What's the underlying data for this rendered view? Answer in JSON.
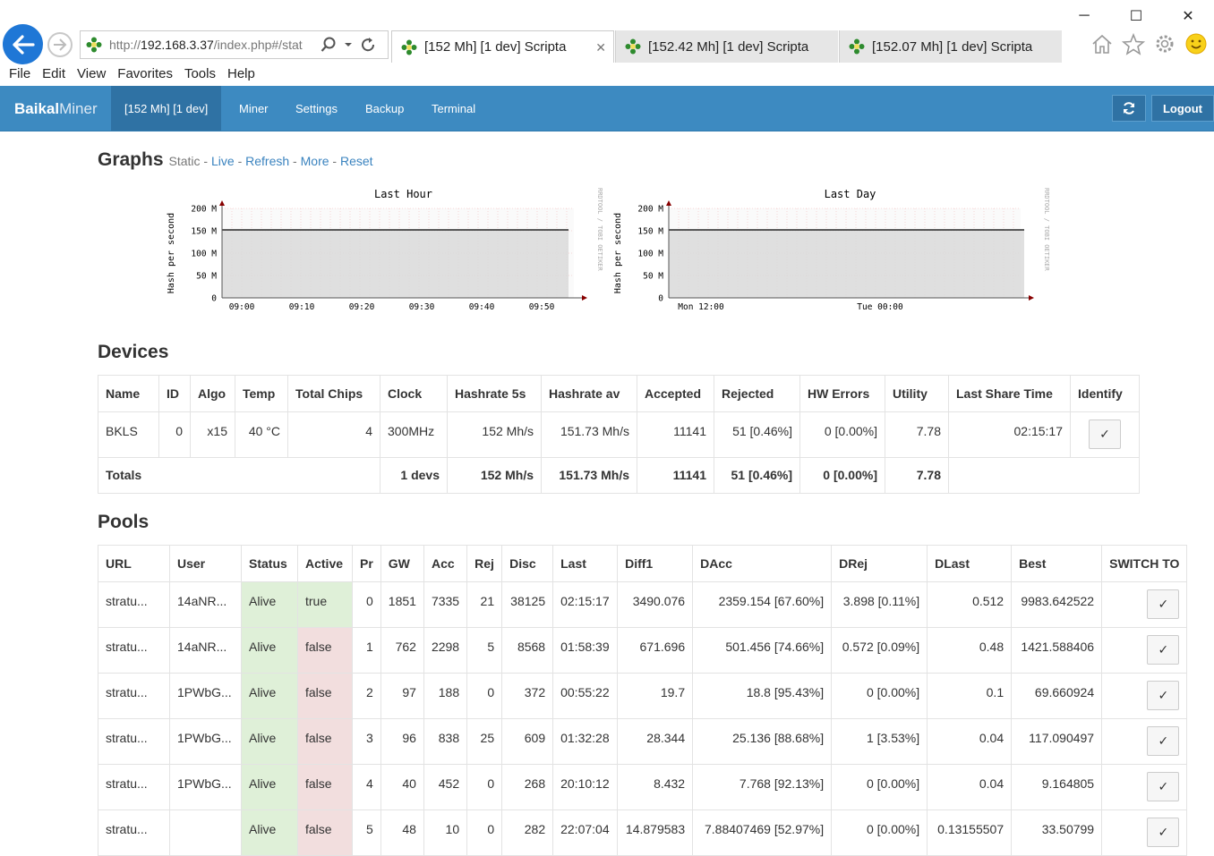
{
  "browser": {
    "url_prefix": "http://",
    "url_host": "192.168.3.37",
    "url_path": "/index.php#/stat",
    "tabs": [
      {
        "label": "[152 Mh] [1 dev] Scripta"
      },
      {
        "label": "[152.42 Mh] [1 dev] Scripta"
      },
      {
        "label": "[152.07 Mh] [1 dev] Scripta"
      }
    ],
    "menu": [
      "File",
      "Edit",
      "View",
      "Favorites",
      "Tools",
      "Help"
    ]
  },
  "nav": {
    "brand_bold": "Baikal",
    "brand_rest": "Miner",
    "items": [
      "[152 Mh] [1 dev]",
      "Miner",
      "Settings",
      "Backup",
      "Terminal"
    ],
    "logout": "Logout"
  },
  "graphs": {
    "title": "Graphs",
    "static": "Static",
    "links": [
      "Live",
      "Refresh",
      "More",
      "Reset"
    ]
  },
  "chart_data": [
    {
      "type": "area",
      "title": "Last Hour",
      "ylabel": "Hash per second",
      "yticks": [
        "0",
        "50 M",
        "100 M",
        "150 M",
        "200 M"
      ],
      "xticks": [
        "09:00",
        "09:10",
        "09:20",
        "09:30",
        "09:40",
        "09:50"
      ],
      "ylim": [
        0,
        200
      ],
      "value": 152,
      "watermark": "RRDTOOL / TOBI OETIKER"
    },
    {
      "type": "area",
      "title": "Last Day",
      "ylabel": "Hash per second",
      "yticks": [
        "0",
        "50 M",
        "100 M",
        "150 M",
        "200 M"
      ],
      "xticks": [
        "Mon 12:00",
        "Tue 00:00"
      ],
      "ylim": [
        0,
        200
      ],
      "value": 152,
      "watermark": "RRDTOOL / TOBI OETIKER"
    }
  ],
  "devices": {
    "title": "Devices",
    "headers": [
      "Name",
      "ID",
      "Algo",
      "Temp",
      "Total Chips",
      "Clock",
      "Hashrate 5s",
      "Hashrate av",
      "Accepted",
      "Rejected",
      "HW Errors",
      "Utility",
      "Last Share Time",
      "Identify"
    ],
    "rows": [
      [
        "BKLS",
        "0",
        "x15",
        "40 °C",
        "4",
        "300MHz",
        "152 Mh/s",
        "151.73 Mh/s",
        "11141",
        "51 [0.46%]",
        "0 [0.00%]",
        "7.78",
        "02:15:17"
      ]
    ],
    "totals": [
      "Totals",
      "1 devs",
      "152 Mh/s",
      "151.73 Mh/s",
      "11141",
      "51 [0.46%]",
      "0 [0.00%]",
      "7.78"
    ],
    "check": "✓"
  },
  "pools": {
    "title": "Pools",
    "headers": [
      "URL",
      "User",
      "Status",
      "Active",
      "Pr",
      "GW",
      "Acc",
      "Rej",
      "Disc",
      "Last",
      "Diff1",
      "DAcc",
      "DRej",
      "DLast",
      "Best",
      "SWITCH TO"
    ],
    "rows": [
      [
        "stratu...",
        "14aNR...",
        "Alive",
        "true",
        "0",
        "1851",
        "7335",
        "21",
        "38125",
        "02:15:17",
        "3490.076",
        "2359.154 [67.60%]",
        "3.898 [0.11%]",
        "0.512",
        "9983.642522"
      ],
      [
        "stratu...",
        "14aNR...",
        "Alive",
        "false",
        "1",
        "762",
        "2298",
        "5",
        "8568",
        "01:58:39",
        "671.696",
        "501.456 [74.66%]",
        "0.572 [0.09%]",
        "0.48",
        "1421.588406"
      ],
      [
        "stratu...",
        "1PWbG...",
        "Alive",
        "false",
        "2",
        "97",
        "188",
        "0",
        "372",
        "00:55:22",
        "19.7",
        "18.8 [95.43%]",
        "0 [0.00%]",
        "0.1",
        "69.660924"
      ],
      [
        "stratu...",
        "1PWbG...",
        "Alive",
        "false",
        "3",
        "96",
        "838",
        "25",
        "609",
        "01:32:28",
        "28.344",
        "25.136 [88.68%]",
        "1 [3.53%]",
        "0.04",
        "117.090497"
      ],
      [
        "stratu...",
        "1PWbG...",
        "Alive",
        "false",
        "4",
        "40",
        "452",
        "0",
        "268",
        "20:10:12",
        "8.432",
        "7.768 [92.13%]",
        "0 [0.00%]",
        "0.04",
        "9.164805"
      ],
      [
        "stratu...",
        "",
        "Alive",
        "false",
        "5",
        "48",
        "10",
        "0",
        "282",
        "22:07:04",
        "14.879583",
        "7.88407469 [52.97%]",
        "0 [0.00%]",
        "0.13155507",
        "33.50799"
      ]
    ],
    "check": "✓"
  }
}
